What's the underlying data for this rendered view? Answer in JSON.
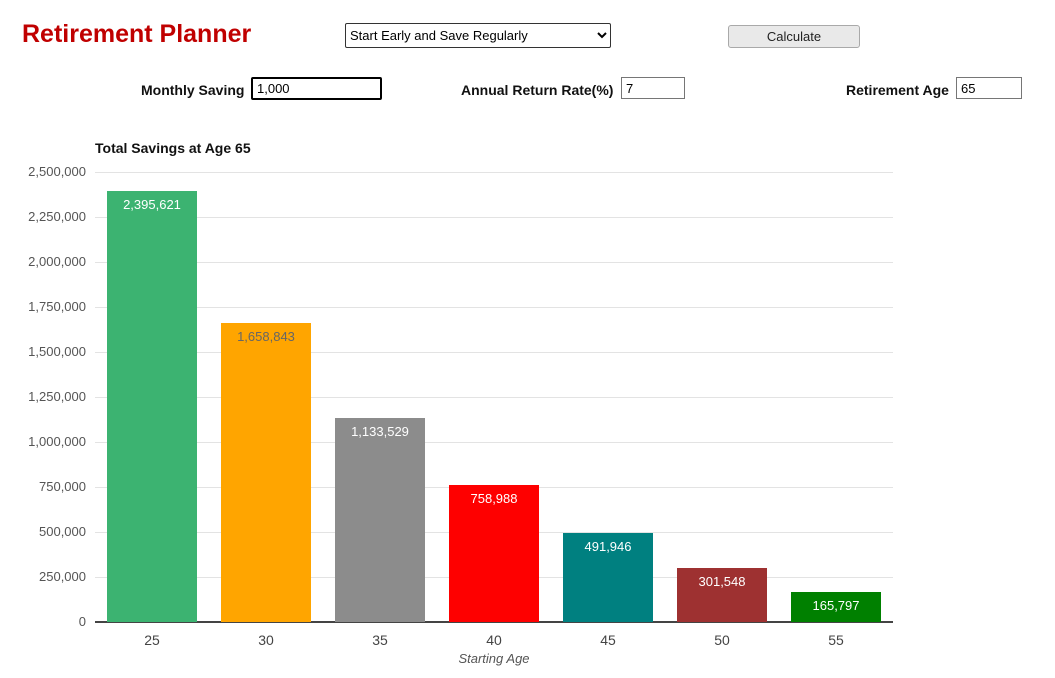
{
  "app": {
    "title": "Retirement Planner",
    "scenario_select": {
      "selected": "Start Early and Save Regularly"
    },
    "calculate_label": "Calculate"
  },
  "inputs": {
    "monthly_saving": {
      "label": "Monthly Saving",
      "value": "1,000"
    },
    "annual_return": {
      "label": "Annual Return Rate(%)",
      "value": "7"
    },
    "retirement_age": {
      "label": "Retirement Age",
      "value": "65"
    }
  },
  "chart_data": {
    "type": "bar",
    "title": "Total Savings at Age 65",
    "categories": [
      "25",
      "30",
      "35",
      "40",
      "45",
      "50",
      "55"
    ],
    "values": [
      2395621,
      1658843,
      1133529,
      758988,
      491946,
      301548,
      165797
    ],
    "value_labels": [
      "2,395,621",
      "1,658,843",
      "1,133,529",
      "758,988",
      "491,946",
      "301,548",
      "165,797"
    ],
    "bar_colors": [
      "#3cb371",
      "#ffa500",
      "#8c8c8c",
      "#fe0000",
      "#008080",
      "#9e3131",
      "#008000"
    ],
    "label_colors": [
      "#ffffff",
      "#666666",
      "#ffffff",
      "#ffffff",
      "#ffffff",
      "#ffffff",
      "#ffffff"
    ],
    "xlabel": "Starting Age",
    "ylabel": "",
    "ylim": [
      0,
      2500000
    ],
    "ytick_step": 250000,
    "ytick_labels": [
      "0",
      "250,000",
      "500,000",
      "750,000",
      "1,000,000",
      "1,250,000",
      "1,500,000",
      "1,750,000",
      "2,000,000",
      "2,250,000",
      "2,500,000"
    ],
    "grid": true,
    "legend": false
  }
}
